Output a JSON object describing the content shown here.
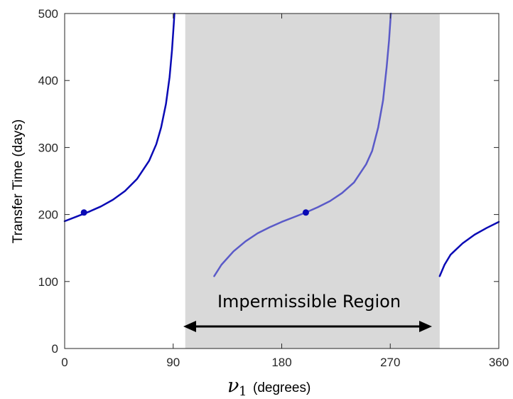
{
  "chart_data": {
    "type": "line",
    "xlabel_symbol": "ν",
    "xlabel_subscript": "1",
    "xlabel_units": "(degrees)",
    "ylabel": "Transfer Time (days)",
    "xlim": [
      0,
      360
    ],
    "ylim": [
      0,
      500
    ],
    "xticks": [
      "0",
      "90",
      "180",
      "270",
      "360"
    ],
    "yticks": [
      "0",
      "100",
      "200",
      "300",
      "400",
      "500"
    ],
    "grid": false,
    "impermissible_region": {
      "x_start": 100,
      "x_end": 311,
      "label": "Impermissible Region",
      "color": "#d9d9d9"
    },
    "series": [
      {
        "color": "#0a0ab5",
        "segments": [
          [
            [
              0,
              190
            ],
            [
              10,
              197
            ],
            [
              20,
              204
            ],
            [
              30,
              212
            ],
            [
              40,
              222
            ],
            [
              50,
              235
            ],
            [
              60,
              253
            ],
            [
              70,
              280
            ],
            [
              76,
              305
            ],
            [
              80,
              330
            ],
            [
              84,
              365
            ],
            [
              87,
              405
            ],
            [
              89,
              445
            ],
            [
              90.5,
              485
            ],
            [
              91,
              500
            ]
          ],
          [
            [
              311,
              108
            ],
            [
              315,
              125
            ],
            [
              320,
              140
            ],
            [
              330,
              157
            ],
            [
              340,
              170
            ],
            [
              350,
              180
            ],
            [
              360,
              189
            ]
          ]
        ],
        "markers": [
          [
            16,
            203
          ]
        ]
      },
      {
        "color": "#5a5ac8",
        "segments": [
          [
            [
              124,
              108
            ],
            [
              130,
              125
            ],
            [
              140,
              145
            ],
            [
              150,
              160
            ],
            [
              160,
              172
            ],
            [
              170,
              181
            ],
            [
              180,
              189
            ],
            [
              190,
              196
            ],
            [
              200,
              203
            ],
            [
              210,
              211
            ],
            [
              220,
              220
            ],
            [
              230,
              232
            ],
            [
              240,
              248
            ],
            [
              250,
              275
            ],
            [
              255,
              295
            ],
            [
              260,
              330
            ],
            [
              264,
              370
            ],
            [
              267,
              420
            ],
            [
              269,
              460
            ],
            [
              270.5,
              500
            ]
          ]
        ],
        "markers": [
          [
            200,
            203
          ]
        ]
      }
    ]
  }
}
